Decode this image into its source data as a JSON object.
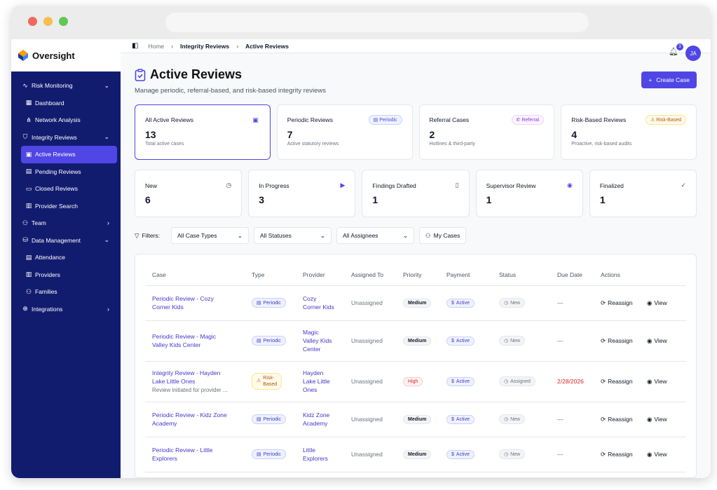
{
  "app": {
    "name": "Oversight"
  },
  "sidebar": {
    "items": [
      {
        "label": "Risk Monitoring",
        "icon": "activity-icon",
        "chevron": "⌄"
      },
      {
        "label": "Dashboard",
        "icon": "grid-icon"
      },
      {
        "label": "Network Analysis",
        "icon": "network-icon"
      },
      {
        "label": "Integrity Reviews",
        "icon": "shield-icon",
        "chevron": "⌄"
      },
      {
        "label": "Active Reviews",
        "icon": "clipboard-icon"
      },
      {
        "label": "Pending Reviews",
        "icon": "calendar-icon"
      },
      {
        "label": "Closed Reviews",
        "icon": "folder-icon"
      },
      {
        "label": "Provider Search",
        "icon": "briefcase-icon"
      },
      {
        "label": "Team",
        "icon": "users-icon",
        "chevron": "›"
      },
      {
        "label": "Data Management",
        "icon": "database-icon",
        "chevron": "⌄"
      },
      {
        "label": "Attendance",
        "icon": "calendar-icon"
      },
      {
        "label": "Providers",
        "icon": "building-icon"
      },
      {
        "label": "Families",
        "icon": "users-icon"
      },
      {
        "label": "Integrations",
        "icon": "globe-icon",
        "chevron": "›"
      }
    ]
  },
  "breadcrumb": {
    "home": "Home",
    "section": "Integrity Reviews",
    "current": "Active Reviews"
  },
  "notifications": {
    "count": "3"
  },
  "user": {
    "initials": "JA"
  },
  "header": {
    "title": "Active Reviews",
    "subtitle": "Manage periodic, referral-based, and risk-based integrity reviews",
    "create_label": "Create Case"
  },
  "summary": [
    {
      "label": "All Active Reviews",
      "value": "13",
      "desc": "Total active cases"
    },
    {
      "label": "Periodic Reviews",
      "value": "7",
      "desc": "Active statutory reviews",
      "tag": "Periodic"
    },
    {
      "label": "Referral Cases",
      "value": "2",
      "desc": "Hotlines & third-party",
      "tag": "Referral"
    },
    {
      "label": "Risk-Based Reviews",
      "value": "4",
      "desc": "Proactive, risk-based audits",
      "tag": "Risk-Based"
    }
  ],
  "statuses": [
    {
      "label": "New",
      "value": "6"
    },
    {
      "label": "In Progress",
      "value": "3"
    },
    {
      "label": "Findings Drafted",
      "value": "1"
    },
    {
      "label": "Supervisor Review",
      "value": "1"
    },
    {
      "label": "Finalized",
      "value": "1"
    }
  ],
  "filters": {
    "label": "Filters:",
    "case_type": "All Case Types",
    "status": "All Statuses",
    "assignee": "All Assignees",
    "my_cases": "My Cases"
  },
  "table": {
    "columns": [
      "Case",
      "Type",
      "Provider",
      "Assigned To",
      "Priority",
      "Payment",
      "Status",
      "Due Date",
      "Actions"
    ],
    "reassign": "Reassign",
    "view": "View",
    "rows": [
      {
        "case1": "Periodic Review - Cozy",
        "case2": "Corner Kids",
        "type": "Periodic",
        "prov1": "Cozy",
        "prov2": "Corner Kids",
        "prov3": "",
        "assigned": "Unassigned",
        "priority": "Medium",
        "payment": "Active",
        "status": "New",
        "due": "—"
      },
      {
        "case1": "Periodic Review - Magic",
        "case2": "Valley Kids Center",
        "type": "Periodic",
        "prov1": "Magic",
        "prov2": "Valley Kids",
        "prov3": "Center",
        "assigned": "Unassigned",
        "priority": "Medium",
        "payment": "Active",
        "status": "New",
        "due": "—"
      },
      {
        "case1": "Integrity Review - Hayden",
        "case2": "Lake Little Ones",
        "case3": "Review initiated for provider ...",
        "type1": "Risk-",
        "type2": "Based",
        "prov1": "Hayden",
        "prov2": "Lake Little",
        "prov3": "Ones",
        "assigned": "Unassigned",
        "priority": "High",
        "payment": "Active",
        "status": "Assigned",
        "due": "2/28/2026"
      },
      {
        "case1": "Periodic Review - Kidz Zone",
        "case2": "Academy",
        "type": "Periodic",
        "prov1": "Kidz Zone",
        "prov2": "Academy",
        "prov3": "",
        "assigned": "Unassigned",
        "priority": "Medium",
        "payment": "Active",
        "status": "New",
        "due": "—"
      },
      {
        "case1": "Periodic Review - Little",
        "case2": "Explorers",
        "type": "Periodic",
        "prov1": "Little",
        "prov2": "Explorers",
        "prov3": "",
        "assigned": "Unassigned",
        "priority": "Medium",
        "payment": "Active",
        "status": "New",
        "due": "—"
      }
    ]
  }
}
